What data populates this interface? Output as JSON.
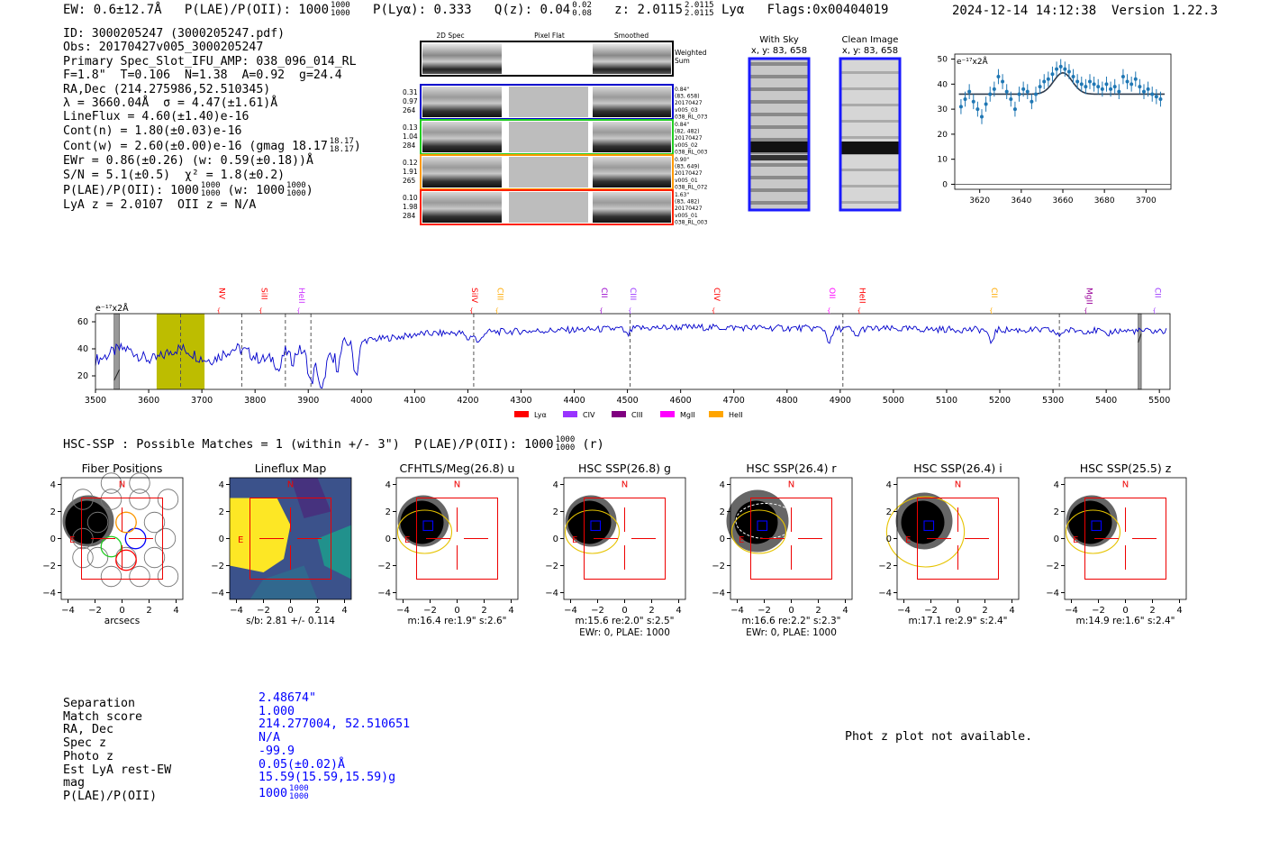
{
  "header": {
    "ew": "EW: 0.6±12.7Å",
    "plae_label": "P(LAE)/P(OII): 1000",
    "plae_hi": "1000",
    "plae_lo": "1000",
    "plya": "P(Lyα): 0.333",
    "qz_label": "Q(z): 0.04",
    "qz_hi": "0.02",
    "qz_lo": "0.08",
    "z_label": "z: 2.0115",
    "z_hi": "2.0115",
    "z_lo": "2.0115",
    "z_line": "Lyα",
    "flags": "Flags:0x00404019",
    "timestamp": "2024-12-14 14:12:38",
    "version": "Version 1.22.3"
  },
  "info": {
    "id": "ID: 3000205247 (3000205247.pdf)",
    "obs": "Obs: 20170427v005_3000205247",
    "slot": "Primary Spec_Slot_IFU_AMP: 038_096_014_RL",
    "params": "F=1.8\"  T=0.106  N=1.38  A=0.92  g=24.4",
    "radec": "RA,Dec (214.275986,52.510345)",
    "lambda": "λ = 3660.04Å  σ = 4.47(±1.61)Å",
    "lineflux": "LineFlux = 4.60(±1.40)e-16",
    "cont_n": "Cont(n) = 1.80(±0.03)e-16",
    "cont_w": "Cont(w) = 2.60(±0.00)e-16 (gmag 18.17",
    "gmag_hi": "18.17",
    "gmag_lo": "18.17",
    "ewr": "EWr = 0.86(±0.26) (w: 0.59(±0.18))Å",
    "sn": "S/N = 5.1(±0.5)  χ² = 1.8(±0.2)",
    "plae": "P(LAE)/P(OII): 1000",
    "plae_hi": "1000",
    "plae_lo": "1000",
    "plae_w": "(w: 1000",
    "plae_w_hi": "1000",
    "plae_w_lo": "1000",
    "plae_close": ")",
    "lya_z": "LyA z = 2.0107  OII z = N/A"
  },
  "cutouts": {
    "col_headers": [
      "2D Spec",
      "Pixel Flat",
      "Smoothed"
    ],
    "weighted_sum": [
      "Weighted",
      "Sum"
    ],
    "rows": [
      {
        "color": "#0000cc",
        "left": [
          "0.31",
          "0.97",
          "264"
        ],
        "right": [
          "0.84\"",
          "(83, 658)",
          "20170427",
          "v005_03",
          "038_RL_073"
        ]
      },
      {
        "color": "#22cc22",
        "left": [
          "0.13",
          "1.04",
          "284"
        ],
        "right": [
          "0.84\"",
          "(82, 482)",
          "20170427",
          "v005_02",
          "038_RL_003"
        ]
      },
      {
        "color": "#ff9900",
        "left": [
          "0.12",
          "1.91",
          "265"
        ],
        "right": [
          "0.90\"",
          "(83, 649)",
          "20170427",
          "v005_01",
          "038_RL_072"
        ]
      },
      {
        "color": "#ff2200",
        "left": [
          "0.10",
          "1.98",
          "284"
        ],
        "right": [
          "1.63\"",
          "(83, 482)",
          "20170427",
          "v005_01",
          "038_RL_003"
        ]
      }
    ],
    "with_sky": [
      "With Sky",
      "x, y: 83, 658"
    ],
    "clean": [
      "Clean Image",
      "x, y: 83, 658"
    ]
  },
  "zoom_chart": {
    "unit": "e⁻¹⁷x2Å",
    "xticks": [
      3620,
      3640,
      3660,
      3680,
      3700
    ],
    "yticks": [
      0,
      10,
      20,
      30,
      40,
      50
    ],
    "points": [
      [
        3611,
        31
      ],
      [
        3613,
        34
      ],
      [
        3615,
        37
      ],
      [
        3617,
        33
      ],
      [
        3619,
        30
      ],
      [
        3621,
        27
      ],
      [
        3623,
        32
      ],
      [
        3625,
        36
      ],
      [
        3627,
        38
      ],
      [
        3629,
        43
      ],
      [
        3631,
        41
      ],
      [
        3633,
        37
      ],
      [
        3635,
        34
      ],
      [
        3637,
        30
      ],
      [
        3639,
        36
      ],
      [
        3641,
        38
      ],
      [
        3643,
        37
      ],
      [
        3645,
        33
      ],
      [
        3647,
        36
      ],
      [
        3649,
        39
      ],
      [
        3651,
        41
      ],
      [
        3653,
        42
      ],
      [
        3655,
        44
      ],
      [
        3657,
        46
      ],
      [
        3659,
        47
      ],
      [
        3661,
        46
      ],
      [
        3663,
        45
      ],
      [
        3665,
        43
      ],
      [
        3667,
        41
      ],
      [
        3669,
        40
      ],
      [
        3671,
        39
      ],
      [
        3673,
        41
      ],
      [
        3675,
        40
      ],
      [
        3677,
        39
      ],
      [
        3679,
        38
      ],
      [
        3681,
        40
      ],
      [
        3683,
        38
      ],
      [
        3685,
        39
      ],
      [
        3687,
        37
      ],
      [
        3689,
        43
      ],
      [
        3691,
        41
      ],
      [
        3693,
        40
      ],
      [
        3695,
        42
      ],
      [
        3697,
        39
      ],
      [
        3699,
        37
      ],
      [
        3701,
        38
      ],
      [
        3703,
        36
      ],
      [
        3705,
        35
      ],
      [
        3707,
        34
      ]
    ],
    "model_continuum": 36,
    "model_peak": 44.5,
    "model_center": 3660.04,
    "model_sigma": 4.47,
    "xlim": [
      3608,
      3712
    ],
    "ylim": [
      -2,
      52
    ]
  },
  "spectrum": {
    "unit": "e⁻¹⁷x2Å",
    "xticks": [
      3500,
      3600,
      3700,
      3800,
      3900,
      4000,
      4100,
      4200,
      4300,
      4400,
      4500,
      4600,
      4700,
      4800,
      4900,
      5000,
      5100,
      5200,
      5300,
      5400,
      5500
    ],
    "yticks": [
      20,
      40,
      60
    ],
    "xlim": [
      3500,
      5520
    ],
    "ylim": [
      10,
      66
    ],
    "lines": [
      {
        "name": "NV",
        "x": 3733,
        "color": "#ff0000"
      },
      {
        "name": "SiII",
        "x": 3812,
        "color": "#ff0000"
      },
      {
        "name": "HeII",
        "x": 3883,
        "color": "#cc33ff"
      },
      {
        "name": "SiIV",
        "x": 4208,
        "color": "#ff0000"
      },
      {
        "name": "CIII",
        "x": 4256,
        "color": "#ffaa00"
      },
      {
        "name": "CII",
        "x": 4452,
        "color": "#9900cc"
      },
      {
        "name": "CIII",
        "x": 4506,
        "color": "#9933ff"
      },
      {
        "name": "CIV",
        "x": 4663,
        "color": "#ff0000"
      },
      {
        "name": "OII",
        "x": 4880,
        "color": "#ff00ff"
      },
      {
        "name": "HeII",
        "x": 4937,
        "color": "#ff0000"
      },
      {
        "name": "CII",
        "x": 5185,
        "color": "#ffaa00"
      },
      {
        "name": "MgII",
        "x": 5363,
        "color": "#990099"
      },
      {
        "name": "CII",
        "x": 5492,
        "color": "#9933ff"
      }
    ],
    "dashed": [
      3660,
      3775,
      3857,
      3905,
      4211,
      4505,
      4905,
      5312
    ],
    "legend": [
      {
        "label": "Lyα",
        "color": "#ff0000"
      },
      {
        "label": "CIV",
        "color": "#9933ff"
      },
      {
        "label": "CIII",
        "color": "#800080"
      },
      {
        "label": "MgII",
        "color": "#ff00ff"
      },
      {
        "label": "HeII",
        "color": "#ffa500"
      }
    ]
  },
  "hsc_line": {
    "text": "HSC-SSP : Possible Matches = 1 (within +/- 3\")  P(LAE)/P(OII): 1000",
    "hi": "1000",
    "lo": "1000",
    "suffix": "(r)"
  },
  "panels": [
    {
      "title": "Fiber Positions",
      "footer": [
        "arcsecs"
      ]
    },
    {
      "title": "Lineflux Map",
      "footer": [
        "s/b: 2.81 +/- 0.114"
      ]
    },
    {
      "title": "CFHTLS/Meg(26.8) u",
      "footer": [
        "m:16.4  re:1.9\"  s:2.6\""
      ]
    },
    {
      "title": "HSC SSP(26.8) g",
      "footer": [
        "m:15.6  re:2.0\"  s:2.5\"",
        "EWr: 0, PLAE: 1000"
      ]
    },
    {
      "title": "HSC SSP(26.4) r",
      "footer": [
        "m:16.6  re:2.2\"  s:2.3\"",
        "EWr: 0, PLAE: 1000"
      ]
    },
    {
      "title": "HSC SSP(26.4) i",
      "footer": [
        "m:17.1  re:2.9\"  s:2.4\""
      ]
    },
    {
      "title": "HSC SSP(25.5) z",
      "footer": [
        "m:14.9  re:1.6\"  s:2.4\""
      ]
    }
  ],
  "panel_axes": {
    "ticks": [
      -4,
      -2,
      0,
      2,
      4
    ],
    "north": "N",
    "east": "E"
  },
  "details": {
    "labels": [
      "Separation",
      "Match score",
      "RA, Dec",
      "Spec z",
      "Photo z",
      "Est LyA rest-EW",
      "mag",
      "P(LAE)/P(OII)"
    ],
    "values": [
      "2.48674\"",
      "1.000",
      "214.277004, 52.510651",
      "N/A",
      "-99.9",
      "0.05(±0.02)Å",
      "15.59(15.59,15.59)g",
      "1000"
    ],
    "plae_hi": "1000",
    "plae_lo": "1000"
  },
  "photz_note": "Phot z plot not available."
}
